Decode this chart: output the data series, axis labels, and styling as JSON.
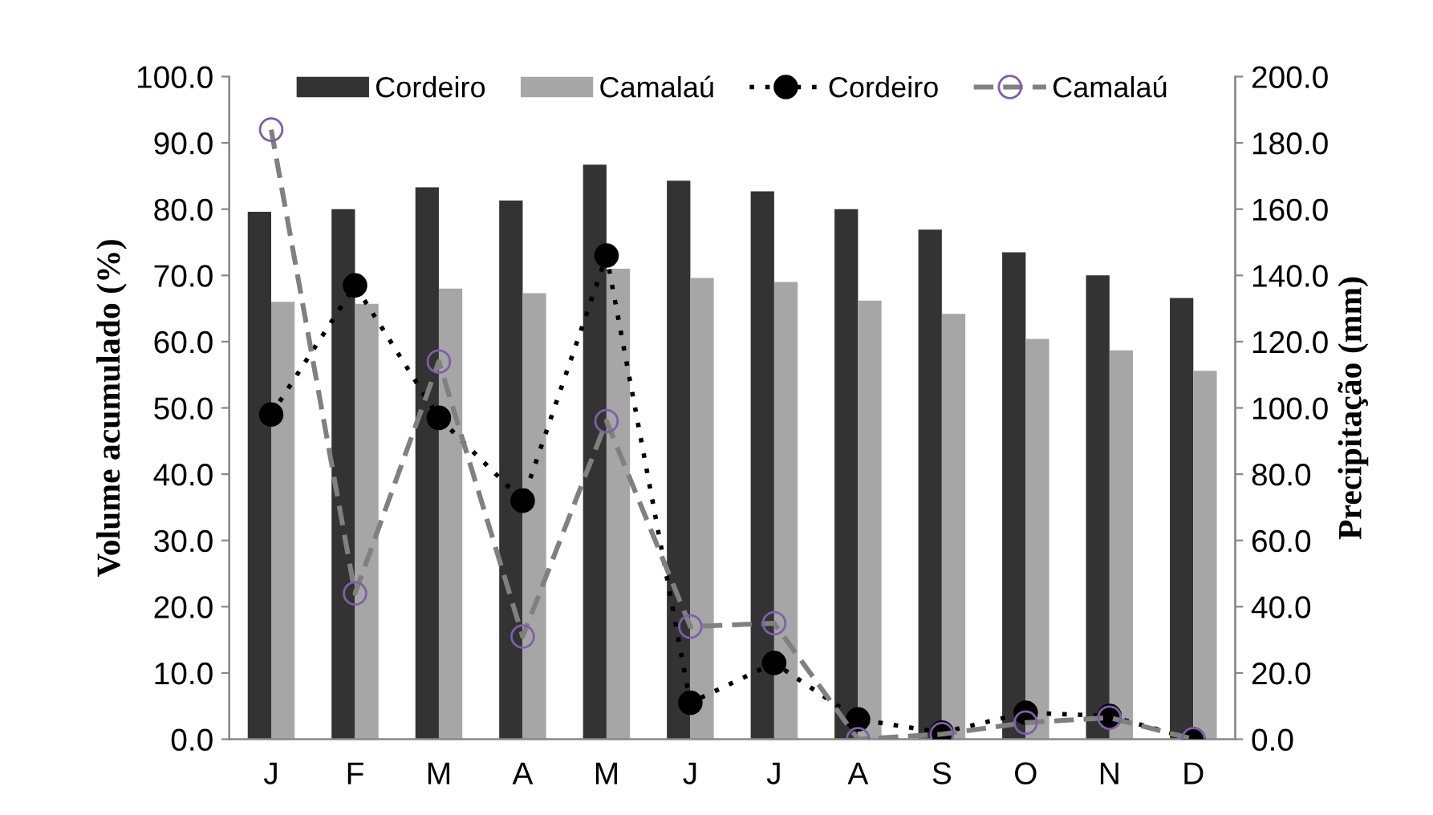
{
  "chart_data": {
    "type": "bar",
    "categories": [
      "J",
      "F",
      "M",
      "A",
      "M",
      "J",
      "J",
      "A",
      "S",
      "O",
      "N",
      "D"
    ],
    "ylabel": "Volume acumulado (%)",
    "y2label": "Precipitação (mm)",
    "series": [
      {
        "name": "Cordeiro",
        "color": "#333333",
        "values": [
          79.6,
          80.0,
          83.3,
          81.3,
          86.7,
          84.3,
          82.7,
          80.0,
          76.9,
          73.5,
          70.0,
          66.6
        ]
      },
      {
        "name": "Camalaú",
        "color": "#a6a6a6",
        "values": [
          66.0,
          65.7,
          68.0,
          67.3,
          71.0,
          69.6,
          69.0,
          66.2,
          64.2,
          60.4,
          58.7,
          55.6
        ]
      },
      {
        "name": "Cordeiro",
        "type": "line",
        "axis": "y2",
        "color": "#000000",
        "marker": "circle",
        "line_style": "dotted",
        "values": [
          98,
          137,
          97,
          72,
          146,
          11,
          23,
          6,
          2,
          8,
          7,
          0
        ]
      },
      {
        "name": "Camalaú",
        "type": "line",
        "axis": "y2",
        "color": "#808080",
        "marker": "circle",
        "line_style": "dashed",
        "values": [
          184,
          44,
          114,
          31,
          96,
          34,
          35,
          0,
          1.5,
          5,
          6.5,
          0
        ]
      }
    ],
    "ylim": [
      0,
      100
    ],
    "yticks": [
      {
        "value": 0,
        "label": "0.0"
      },
      {
        "value": 10,
        "label": "10.0"
      },
      {
        "value": 20,
        "label": "20.0"
      },
      {
        "value": 30,
        "label": "30.0"
      },
      {
        "value": 40,
        "label": "40.0"
      },
      {
        "value": 50,
        "label": "50.0"
      },
      {
        "value": 60,
        "label": "60.0"
      },
      {
        "value": 70,
        "label": "70.0"
      },
      {
        "value": 80,
        "label": "80.0"
      },
      {
        "value": 90,
        "label": "90.0"
      },
      {
        "value": 100,
        "label": "100.0"
      }
    ],
    "y2lim": [
      0,
      200
    ],
    "y2ticks": [
      {
        "value": 0,
        "label": "0.0"
      },
      {
        "value": 20,
        "label": "20.0"
      },
      {
        "value": 40,
        "label": "40.0"
      },
      {
        "value": 60,
        "label": "60.0"
      },
      {
        "value": 80,
        "label": "80.0"
      },
      {
        "value": 100,
        "label": "100.0"
      },
      {
        "value": 120,
        "label": "120.0"
      },
      {
        "value": 140,
        "label": "140.0"
      },
      {
        "value": 160,
        "label": "160.0"
      },
      {
        "value": 180,
        "label": "180.0"
      },
      {
        "value": 200,
        "label": "200.0"
      }
    ],
    "legend": "top"
  }
}
